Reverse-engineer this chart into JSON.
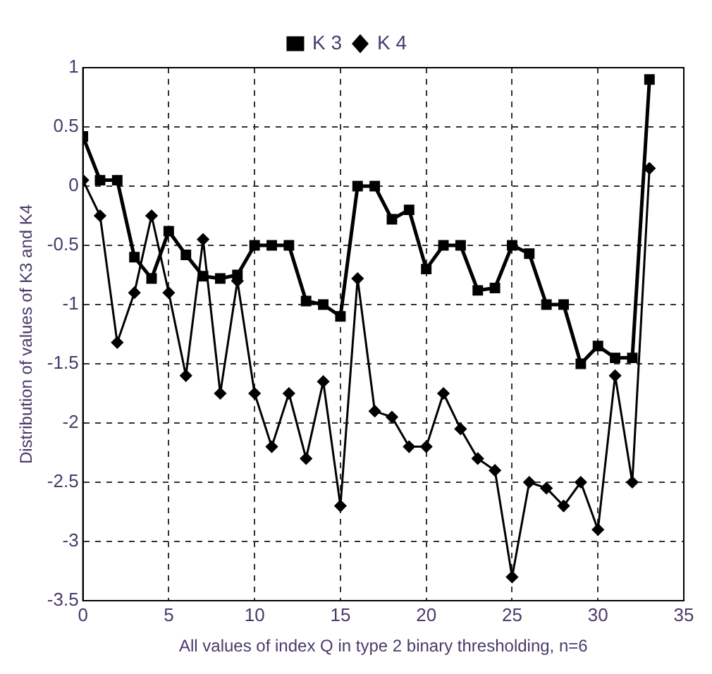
{
  "chart_data": {
    "type": "line",
    "xlabel": "All values of index Q in type 2 binary thresholding, n=6",
    "ylabel": "Distribution of values of K3 and K4",
    "x": [
      0,
      1,
      2,
      3,
      4,
      5,
      6,
      7,
      8,
      9,
      10,
      11,
      12,
      13,
      14,
      15,
      16,
      17,
      18,
      19,
      20,
      21,
      22,
      23,
      24,
      25,
      26,
      27,
      28,
      29,
      30,
      31,
      32,
      33
    ],
    "series": [
      {
        "name": "K 3",
        "color": "#000000",
        "marker": "square",
        "values": [
          0.42,
          0.05,
          0.05,
          -0.6,
          -0.78,
          -0.38,
          -0.58,
          -0.76,
          -0.78,
          -0.75,
          -0.5,
          -0.5,
          -0.5,
          -0.97,
          -1.0,
          -1.1,
          0,
          0,
          -0.28,
          -0.2,
          -0.7,
          -0.5,
          -0.5,
          -0.88,
          -0.86,
          -0.5,
          -0.57,
          -1.0,
          -1.0,
          -1.5,
          -1.35,
          -1.45,
          -1.45,
          0.9
        ]
      },
      {
        "name": "K 4",
        "color": "#000000",
        "marker": "diamond",
        "values": [
          0.05,
          -0.25,
          -1.32,
          -0.9,
          -0.25,
          -0.9,
          -1.6,
          -0.45,
          -1.75,
          -0.8,
          -1.75,
          -2.2,
          -1.75,
          -2.3,
          -1.65,
          -2.7,
          -0.78,
          -1.9,
          -1.95,
          -2.2,
          -2.2,
          -1.75,
          -2.05,
          -2.3,
          -2.4,
          -3.3,
          -2.5,
          -2.55,
          -2.7,
          -2.5,
          -2.9,
          -1.6,
          -2.5,
          0.15
        ]
      }
    ],
    "xlim": [
      0,
      35
    ],
    "xticks": [
      0,
      5,
      10,
      15,
      20,
      25,
      30,
      35
    ],
    "ylim": [
      -3.5,
      1
    ],
    "yticks": [
      -3.5,
      -3,
      -2.5,
      -2,
      -1.5,
      -1,
      -0.5,
      0,
      0.5,
      1
    ],
    "grid": true,
    "legend": "top",
    "line_style": "solid"
  }
}
